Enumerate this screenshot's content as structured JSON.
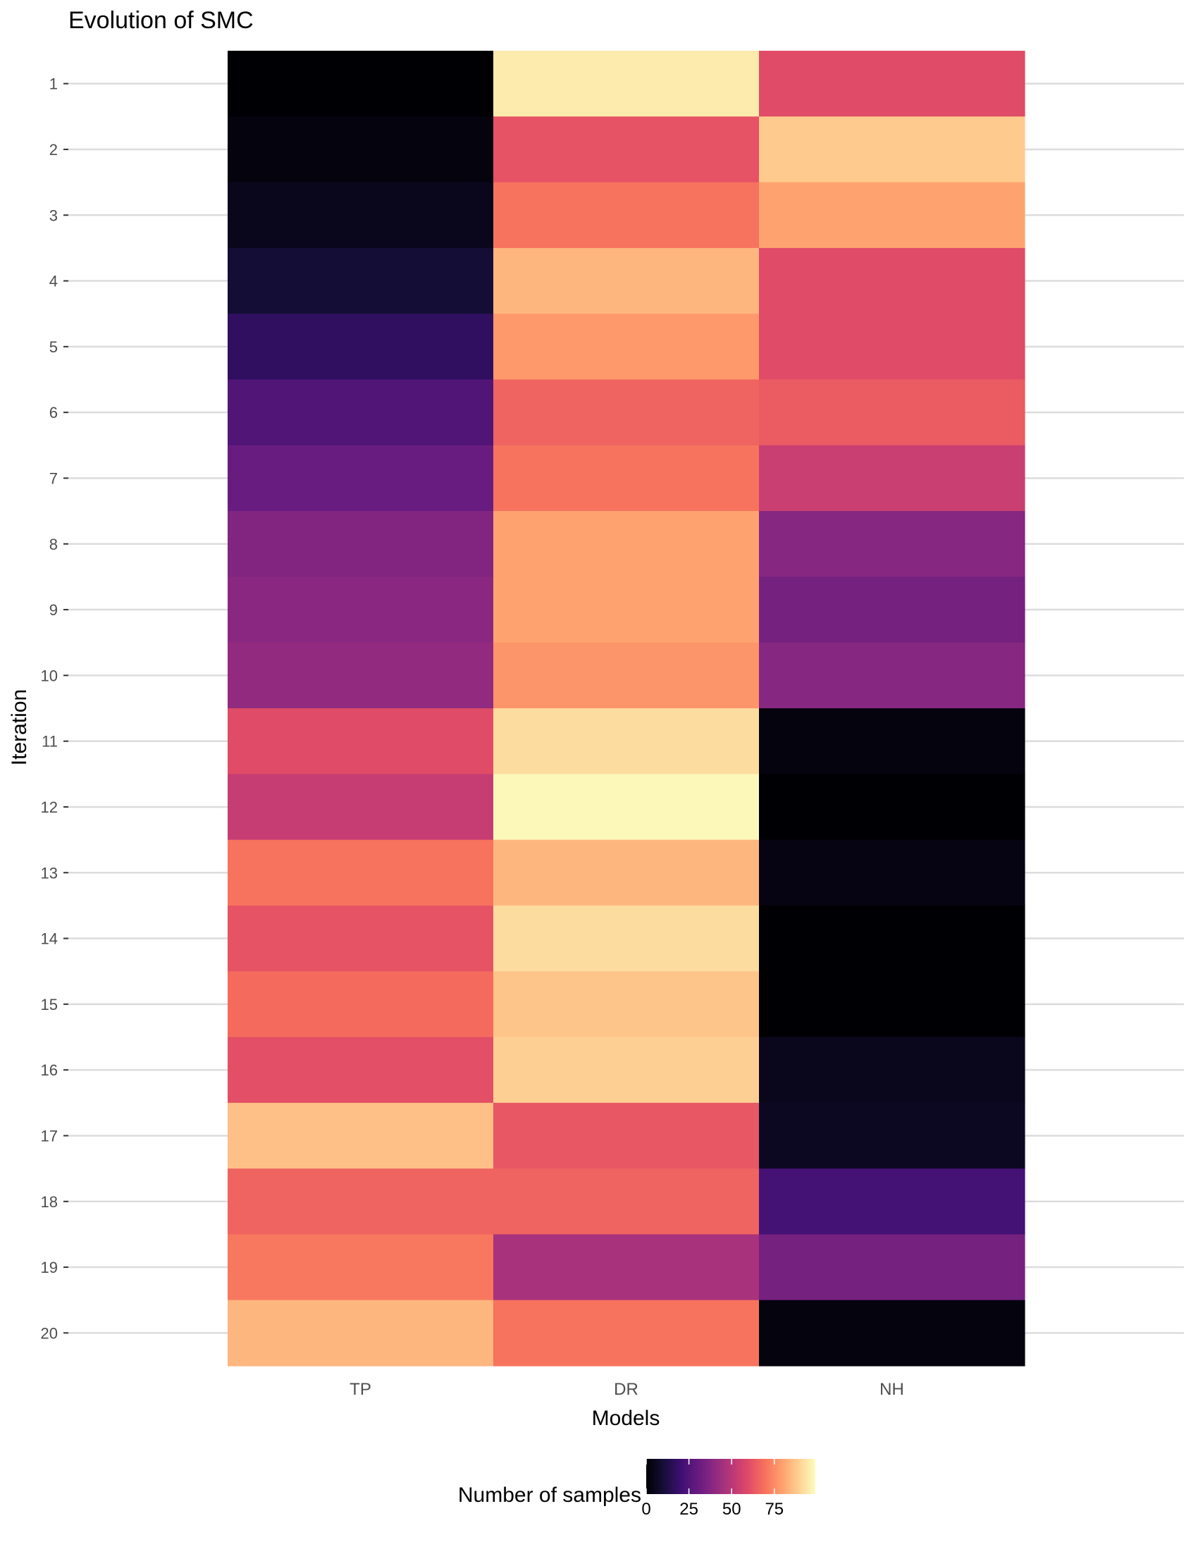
{
  "chart_data": {
    "type": "heatmap",
    "title": "Evolution of SMC",
    "xlabel": "Models",
    "ylabel": "Iteration",
    "x_categories": [
      "TP",
      "DR",
      "NH"
    ],
    "y_categories": [
      "1",
      "2",
      "3",
      "4",
      "5",
      "6",
      "7",
      "8",
      "9",
      "10",
      "11",
      "12",
      "13",
      "14",
      "15",
      "16",
      "17",
      "18",
      "19",
      "20"
    ],
    "values": [
      [
        0,
        95,
        60
      ],
      [
        2,
        62,
        88
      ],
      [
        5,
        70,
        80
      ],
      [
        10,
        84,
        60
      ],
      [
        17,
        78,
        60
      ],
      [
        25,
        66,
        64
      ],
      [
        31,
        70,
        54
      ],
      [
        37,
        80,
        38
      ],
      [
        39,
        80,
        34
      ],
      [
        41,
        77,
        38
      ],
      [
        60,
        92,
        2
      ],
      [
        53,
        98,
        0
      ],
      [
        70,
        84,
        3
      ],
      [
        62,
        92,
        0
      ],
      [
        68,
        87,
        0
      ],
      [
        61,
        89,
        5
      ],
      [
        86,
        63,
        6
      ],
      [
        66,
        66,
        22
      ],
      [
        71,
        46,
        34
      ],
      [
        84,
        70,
        2
      ]
    ],
    "legend": {
      "title": "Number of samples",
      "ticks": [
        "0",
        "25",
        "50",
        "75"
      ],
      "min": 0,
      "max": 99,
      "position": "bottom"
    },
    "colormap": "magma",
    "grid": true
  }
}
